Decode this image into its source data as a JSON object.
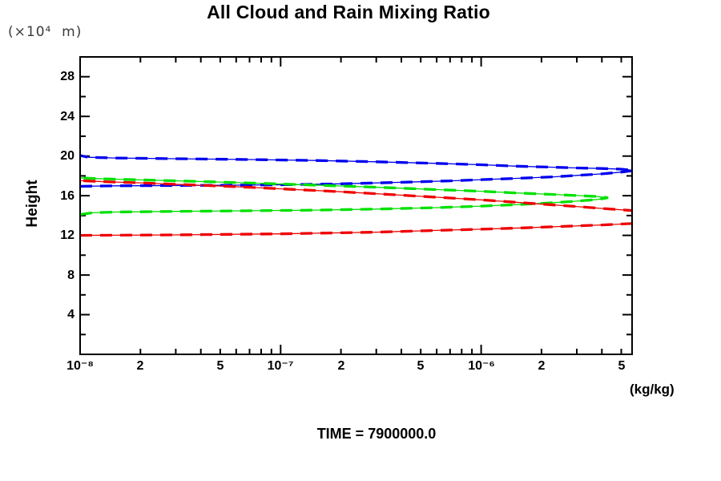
{
  "header": {
    "title": "All Cloud and Rain Mixing Ratio"
  },
  "footer": {
    "time_label": "TIME = 7900000.0"
  },
  "chart_data": {
    "type": "line",
    "title": "All Cloud and Rain Mixing Ratio",
    "xlabel": "(kg/kg)",
    "ylabel": "Height",
    "y_unit_label": "(×10⁴  m)",
    "x_scale": "log",
    "xlim": [
      1e-08,
      5.66e-06
    ],
    "ylim": [
      0,
      30
    ],
    "grid": false,
    "legend": "none",
    "frame_color": "#000000",
    "x_decades": [
      1e-08,
      1e-07,
      1e-06
    ],
    "xticks": [
      {
        "v": 1e-08,
        "label": "10⁻⁸",
        "major": true
      },
      {
        "v": 2e-08,
        "label": "2"
      },
      {
        "v": 5e-08,
        "label": "5"
      },
      {
        "v": 1e-07,
        "label": "10⁻⁷",
        "major": true
      },
      {
        "v": 2e-07,
        "label": "2"
      },
      {
        "v": 5e-07,
        "label": "5"
      },
      {
        "v": 1e-06,
        "label": "10⁻⁶",
        "major": true
      },
      {
        "v": 2e-06,
        "label": "2"
      },
      {
        "v": 5e-06,
        "label": "5"
      }
    ],
    "yticks": [
      {
        "v": 2
      },
      {
        "v": 4,
        "label": "4"
      },
      {
        "v": 6
      },
      {
        "v": 8,
        "label": "8"
      },
      {
        "v": 10
      },
      {
        "v": 12,
        "label": "12"
      },
      {
        "v": 14
      },
      {
        "v": 16,
        "label": "16"
      },
      {
        "v": 18
      },
      {
        "v": 20,
        "label": "20"
      },
      {
        "v": 22
      },
      {
        "v": 24,
        "label": "24"
      },
      {
        "v": 26
      },
      {
        "v": 28,
        "label": "28"
      }
    ],
    "series": [
      {
        "name": "blue",
        "color": "#0000ee",
        "points": [
          [
            1e-08,
            16.95
          ],
          [
            1.5e-08,
            17.0
          ],
          [
            5e-08,
            17.05
          ],
          [
            1e-07,
            17.1
          ],
          [
            2e-07,
            17.2
          ],
          [
            4e-07,
            17.35
          ],
          [
            7e-07,
            17.5
          ],
          [
            1e-06,
            17.62
          ],
          [
            1.5e-06,
            17.75
          ],
          [
            2.3e-06,
            17.9
          ],
          [
            3e-06,
            18.05
          ],
          [
            4e-06,
            18.2
          ],
          [
            5e-06,
            18.38
          ],
          [
            5.8e-06,
            18.55
          ],
          [
            5e-06,
            18.68
          ],
          [
            4e-06,
            18.74
          ],
          [
            3e-06,
            18.8
          ],
          [
            2.3e-06,
            18.87
          ],
          [
            1.5e-06,
            18.98
          ],
          [
            1e-06,
            19.12
          ],
          [
            6e-07,
            19.26
          ],
          [
            3e-07,
            19.42
          ],
          [
            1.5e-07,
            19.55
          ],
          [
            7e-08,
            19.65
          ],
          [
            3e-08,
            19.73
          ],
          [
            1.5e-08,
            19.8
          ],
          [
            1.1e-08,
            19.88
          ],
          [
            1e-08,
            20.05
          ]
        ]
      },
      {
        "name": "green",
        "color": "#00e000",
        "points": [
          [
            1e-08,
            14.1
          ],
          [
            1.15e-08,
            14.28
          ],
          [
            1.5e-08,
            14.35
          ],
          [
            3e-08,
            14.42
          ],
          [
            7e-08,
            14.48
          ],
          [
            1.5e-07,
            14.55
          ],
          [
            3e-07,
            14.65
          ],
          [
            6e-07,
            14.8
          ],
          [
            1e-06,
            14.95
          ],
          [
            1.6e-06,
            15.12
          ],
          [
            2.3e-06,
            15.3
          ],
          [
            3e-06,
            15.45
          ],
          [
            3.8e-06,
            15.62
          ],
          [
            4.3e-06,
            15.8
          ],
          [
            3.8e-06,
            15.92
          ],
          [
            3e-06,
            16.02
          ],
          [
            2.2e-06,
            16.14
          ],
          [
            1.5e-06,
            16.28
          ],
          [
            1e-06,
            16.45
          ],
          [
            6e-07,
            16.62
          ],
          [
            3.5e-07,
            16.8
          ],
          [
            2e-07,
            16.98
          ],
          [
            1e-07,
            17.18
          ],
          [
            5e-08,
            17.38
          ],
          [
            2.5e-08,
            17.55
          ],
          [
            1.3e-08,
            17.7
          ],
          [
            1e-08,
            17.8
          ]
        ]
      },
      {
        "name": "red",
        "color": "#ee0000",
        "points": [
          [
            1e-08,
            12.0
          ],
          [
            3e-08,
            12.05
          ],
          [
            1e-07,
            12.15
          ],
          [
            3e-07,
            12.32
          ],
          [
            6e-07,
            12.5
          ],
          [
            1e-06,
            12.62
          ],
          [
            1.6e-06,
            12.75
          ],
          [
            2.5e-06,
            12.9
          ],
          [
            4e-06,
            13.05
          ],
          [
            5.7e-06,
            13.2
          ],
          [
            8.5e-06,
            13.85
          ],
          [
            5.7e-06,
            14.5
          ],
          [
            4e-06,
            14.72
          ],
          [
            2.8e-06,
            14.95
          ],
          [
            2e-06,
            15.15
          ],
          [
            1.4e-06,
            15.38
          ],
          [
            1e-06,
            15.58
          ],
          [
            6e-07,
            15.85
          ],
          [
            3.5e-07,
            16.12
          ],
          [
            2e-07,
            16.4
          ],
          [
            1.2e-07,
            16.62
          ],
          [
            7e-08,
            16.85
          ],
          [
            4e-08,
            17.05
          ],
          [
            2e-08,
            17.3
          ],
          [
            1.3e-08,
            17.42
          ],
          [
            1e-08,
            17.52
          ]
        ]
      }
    ]
  }
}
